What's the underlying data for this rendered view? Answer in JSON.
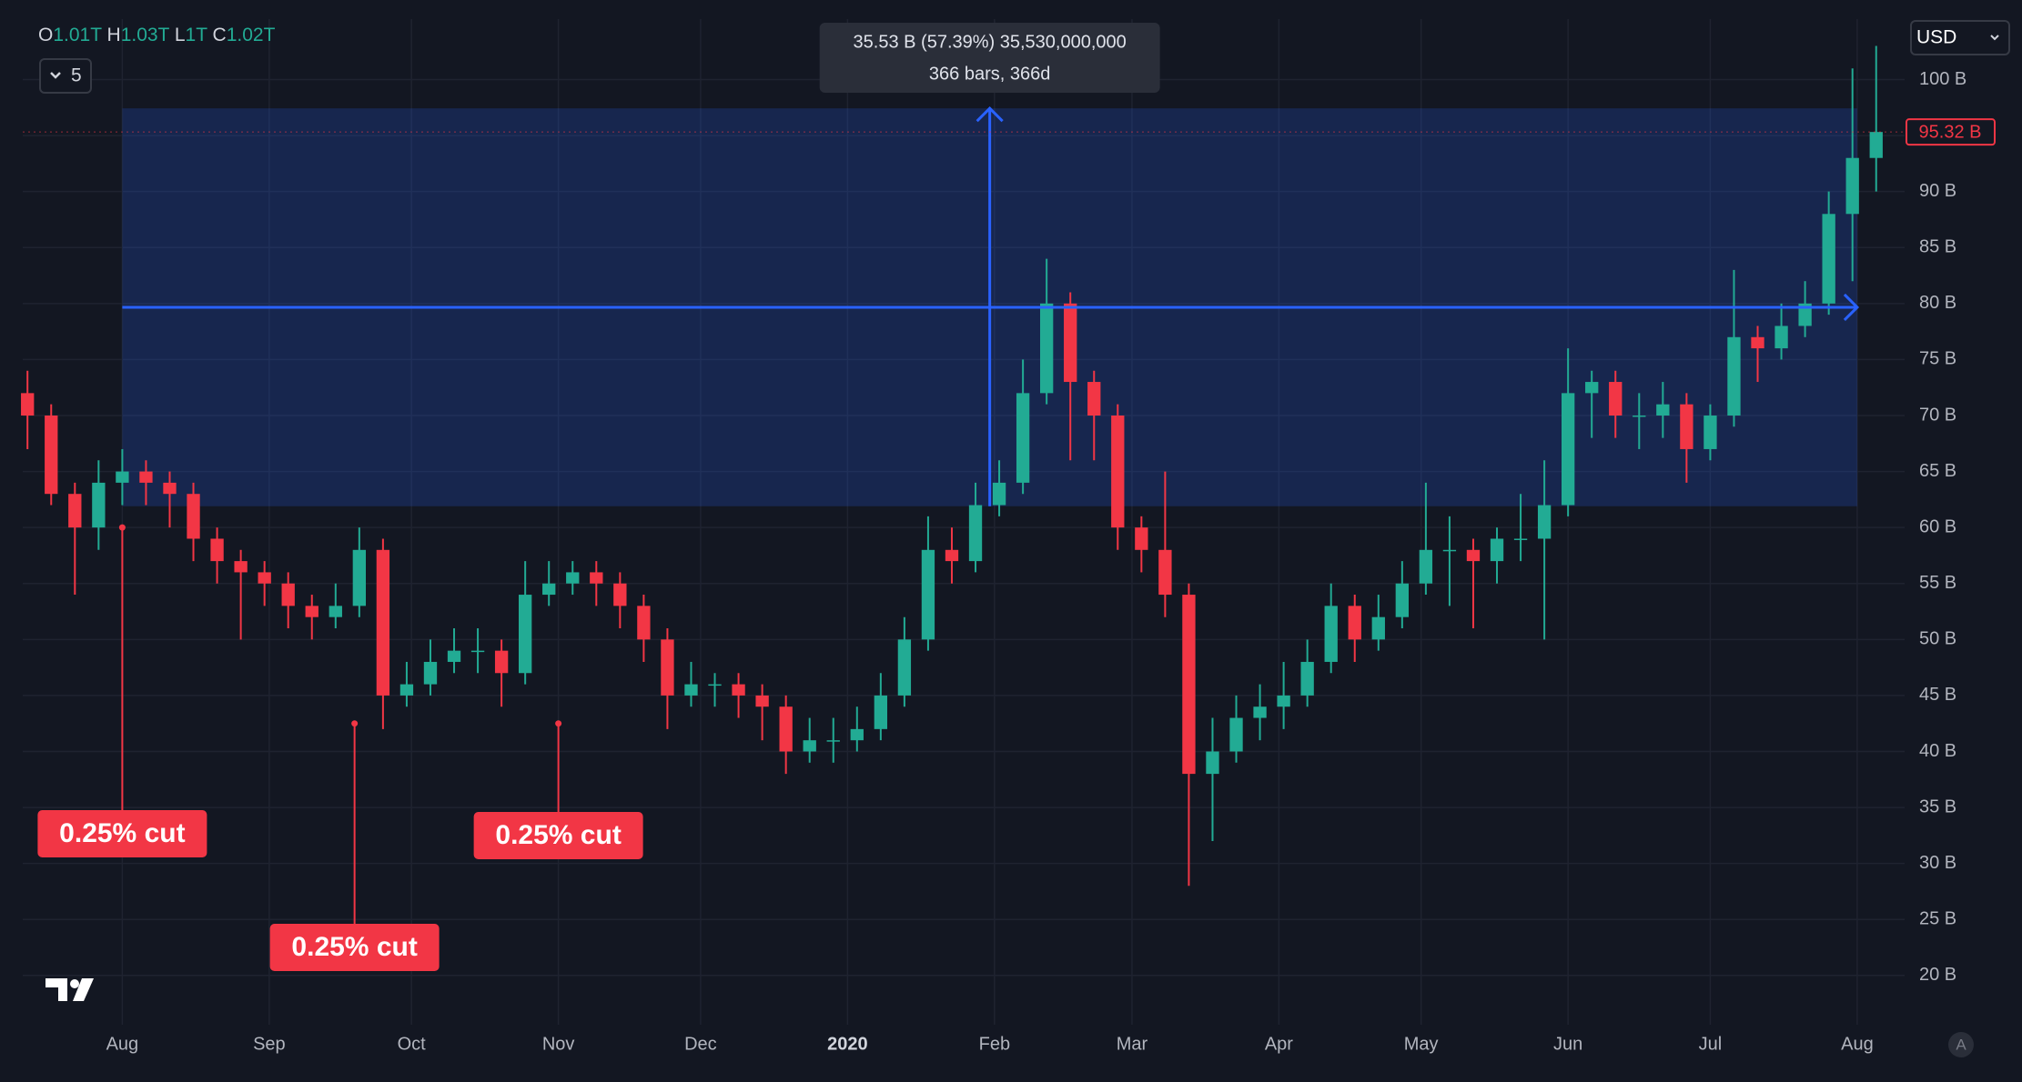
{
  "chart_data": {
    "type": "candlestick",
    "ohlc_legend": [
      {
        "key": "O",
        "value": "1.01T"
      },
      {
        "key": "H",
        "value": "1.03T"
      },
      {
        "key": "L",
        "value": "1T"
      },
      {
        "key": "C",
        "value": "1.02T"
      }
    ],
    "indicator_count": "5",
    "currency": "USD",
    "auto_button": "A",
    "up_color": "#22ab94",
    "down_color": "#f23645",
    "grid": true,
    "xlim": [
      -21,
      376
    ],
    "xticks": [
      {
        "value": 0,
        "label": "Aug"
      },
      {
        "value": 31,
        "label": "Sep"
      },
      {
        "value": 61,
        "label": "Oct"
      },
      {
        "value": 92,
        "label": "Nov"
      },
      {
        "value": 122,
        "label": "Dec"
      },
      {
        "value": 153,
        "label": "2020"
      },
      {
        "value": 184,
        "label": "Feb"
      },
      {
        "value": 213,
        "label": "Mar"
      },
      {
        "value": 244,
        "label": "Apr"
      },
      {
        "value": 274,
        "label": "May"
      },
      {
        "value": 305,
        "label": "Jun"
      },
      {
        "value": 335,
        "label": "Jul"
      },
      {
        "value": 366,
        "label": "Aug"
      }
    ],
    "ylim": [
      15.6,
      105.4
    ],
    "yticks": [
      {
        "value": 20,
        "label": "20 B"
      },
      {
        "value": 25,
        "label": "25 B"
      },
      {
        "value": 30,
        "label": "30 B"
      },
      {
        "value": 35,
        "label": "35 B"
      },
      {
        "value": 40,
        "label": "40 B"
      },
      {
        "value": 45,
        "label": "45 B"
      },
      {
        "value": 50,
        "label": "50 B"
      },
      {
        "value": 55,
        "label": "55 B"
      },
      {
        "value": 60,
        "label": "60 B"
      },
      {
        "value": 65,
        "label": "65 B"
      },
      {
        "value": 70,
        "label": "70 B"
      },
      {
        "value": 75,
        "label": "75 B"
      },
      {
        "value": 80,
        "label": "80 B"
      },
      {
        "value": 85,
        "label": "85 B"
      },
      {
        "value": 90,
        "label": "90 B"
      },
      {
        "value": 95,
        "label": "95 B"
      },
      {
        "value": 100,
        "label": "100 B"
      }
    ],
    "candles": {
      "x": [
        -20,
        -15,
        -10,
        -5,
        0,
        5,
        10,
        15,
        20,
        25,
        30,
        35,
        40,
        45,
        50,
        55,
        60,
        65,
        70,
        75,
        80,
        85,
        90,
        95,
        100,
        105,
        110,
        115,
        120,
        125,
        130,
        135,
        140,
        145,
        150,
        155,
        160,
        165,
        170,
        175,
        180,
        185,
        190,
        195,
        200,
        205,
        210,
        215,
        220,
        225,
        230,
        235,
        240,
        245,
        250,
        255,
        260,
        265,
        270,
        275,
        280,
        285,
        290,
        295,
        300,
        305,
        310,
        315,
        320,
        325,
        330,
        335,
        340,
        345,
        350,
        355,
        360,
        365,
        370
      ],
      "open": [
        72,
        70,
        63,
        60,
        64,
        65,
        64,
        63,
        59,
        57,
        56,
        55,
        53,
        52,
        53,
        58,
        45,
        46,
        48,
        49,
        49,
        47,
        54,
        55,
        56,
        55,
        53,
        50,
        45,
        46,
        46,
        45,
        44,
        40,
        41,
        41,
        42,
        45,
        50,
        58,
        57,
        62,
        64,
        72,
        80,
        73,
        70,
        60,
        58,
        54,
        38,
        40,
        43,
        44,
        45,
        48,
        53,
        50,
        52,
        55,
        58,
        58,
        57,
        59,
        59,
        62,
        72,
        73,
        70,
        70,
        71,
        67,
        70,
        77,
        76,
        78,
        80,
        88,
        93
      ],
      "high": [
        74,
        71,
        64,
        66,
        67,
        66,
        65,
        64,
        60,
        58,
        57,
        56,
        54,
        55,
        60,
        59,
        48,
        50,
        51,
        51,
        50,
        57,
        57,
        57,
        57,
        56,
        54,
        51,
        48,
        47,
        47,
        46,
        45,
        43,
        43,
        44,
        47,
        52,
        61,
        60,
        64,
        66,
        75,
        84,
        81,
        74,
        71,
        61,
        65,
        55,
        43,
        45,
        46,
        48,
        50,
        55,
        54,
        54,
        57,
        64,
        61,
        59,
        60,
        63,
        66,
        76,
        74,
        74,
        72,
        73,
        72,
        71,
        83,
        78,
        80,
        82,
        90,
        101,
        103
      ],
      "low": [
        67,
        62,
        54,
        58,
        62,
        62,
        60,
        57,
        55,
        50,
        53,
        51,
        50,
        51,
        52,
        42,
        44,
        45,
        47,
        47,
        44,
        46,
        53,
        54,
        53,
        51,
        48,
        42,
        44,
        44,
        43,
        41,
        38,
        39,
        39,
        40,
        41,
        44,
        49,
        55,
        56,
        61,
        63,
        71,
        66,
        66,
        58,
        56,
        52,
        28,
        32,
        39,
        41,
        42,
        44,
        47,
        48,
        49,
        51,
        54,
        53,
        51,
        55,
        57,
        50,
        61,
        68,
        68,
        67,
        68,
        64,
        66,
        69,
        73,
        75,
        77,
        79,
        82,
        90
      ],
      "close": [
        70,
        63,
        60,
        64,
        65,
        64,
        63,
        59,
        57,
        56,
        55,
        53,
        52,
        53,
        58,
        45,
        46,
        48,
        49,
        49,
        47,
        54,
        55,
        56,
        55,
        53,
        50,
        45,
        46,
        46,
        45,
        44,
        40,
        41,
        41,
        42,
        45,
        50,
        58,
        57,
        62,
        64,
        72,
        80,
        73,
        70,
        60,
        58,
        54,
        38,
        40,
        43,
        44,
        45,
        48,
        53,
        50,
        52,
        55,
        58,
        58,
        57,
        59,
        59,
        62,
        72,
        73,
        70,
        70,
        71,
        67,
        70,
        77,
        76,
        78,
        80,
        88,
        93,
        95.32
      ]
    },
    "last_price": {
      "value": 95.32,
      "label": "95.32 B"
    },
    "measure": {
      "x": [
        0,
        366
      ],
      "y": [
        61.9,
        97.43
      ],
      "color": "#2962ff",
      "tooltip": [
        "35.53 B (57.39%) 35,530,000,000",
        "366 bars, 366d"
      ]
    },
    "annotations": [
      {
        "x": 0,
        "y": 60,
        "text": "0.25% cut"
      },
      {
        "x": 49,
        "y": 42.5,
        "text": "0.25% cut"
      },
      {
        "x": 92,
        "y": 42.5,
        "text": "0.25% cut"
      }
    ],
    "annotation_color": "#f23645"
  }
}
